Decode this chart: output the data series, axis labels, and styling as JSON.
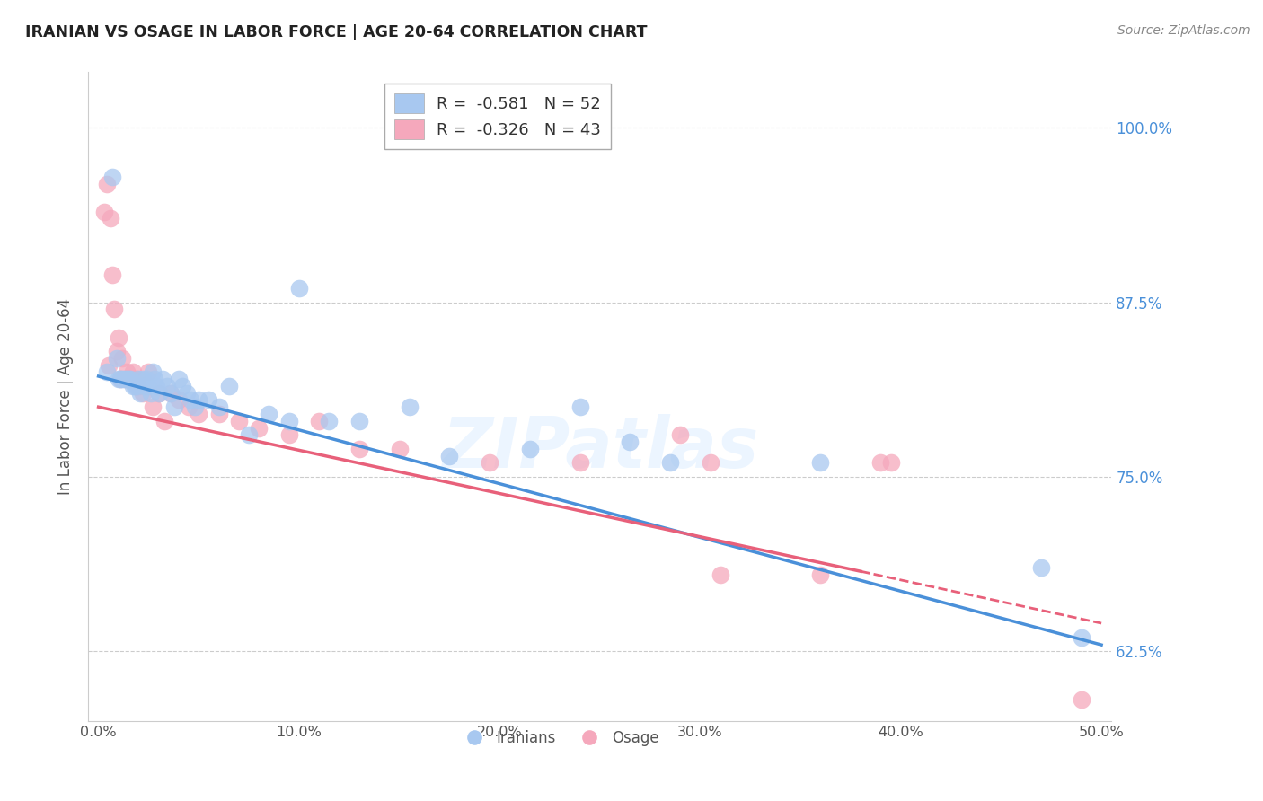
{
  "title": "IRANIAN VS OSAGE IN LABOR FORCE | AGE 20-64 CORRELATION CHART",
  "source": "Source: ZipAtlas.com",
  "ylabel": "In Labor Force | Age 20-64",
  "x_tick_labels": [
    "0.0%",
    "10.0%",
    "20.0%",
    "30.0%",
    "40.0%",
    "50.0%"
  ],
  "x_tick_values": [
    0.0,
    0.1,
    0.2,
    0.3,
    0.4,
    0.5
  ],
  "y_tick_labels": [
    "62.5%",
    "75.0%",
    "87.5%",
    "100.0%"
  ],
  "y_tick_values": [
    0.625,
    0.75,
    0.875,
    1.0
  ],
  "xlim": [
    -0.005,
    0.505
  ],
  "ylim": [
    0.575,
    1.04
  ],
  "watermark": "ZIPatlas",
  "blue_color": "#A8C8F0",
  "pink_color": "#F5A8BC",
  "blue_line_color": "#4A90D9",
  "pink_line_color": "#E8607A",
  "blue_intercept": 0.822,
  "blue_slope": -0.385,
  "pink_intercept": 0.8,
  "pink_slope": -0.31,
  "iranians_x": [
    0.004,
    0.007,
    0.009,
    0.01,
    0.011,
    0.012,
    0.013,
    0.014,
    0.015,
    0.016,
    0.017,
    0.018,
    0.019,
    0.02,
    0.021,
    0.022,
    0.023,
    0.024,
    0.025,
    0.026,
    0.027,
    0.028,
    0.029,
    0.03,
    0.032,
    0.034,
    0.036,
    0.038,
    0.04,
    0.042,
    0.044,
    0.046,
    0.048,
    0.05,
    0.055,
    0.06,
    0.065,
    0.075,
    0.085,
    0.095,
    0.1,
    0.115,
    0.13,
    0.155,
    0.175,
    0.215,
    0.24,
    0.265,
    0.285,
    0.36,
    0.47,
    0.49
  ],
  "iranians_y": [
    0.825,
    0.965,
    0.835,
    0.82,
    0.82,
    0.82,
    0.82,
    0.82,
    0.82,
    0.82,
    0.815,
    0.815,
    0.815,
    0.82,
    0.81,
    0.82,
    0.815,
    0.82,
    0.815,
    0.81,
    0.825,
    0.82,
    0.815,
    0.81,
    0.82,
    0.815,
    0.81,
    0.8,
    0.82,
    0.815,
    0.81,
    0.805,
    0.8,
    0.805,
    0.805,
    0.8,
    0.815,
    0.78,
    0.795,
    0.79,
    0.885,
    0.79,
    0.79,
    0.8,
    0.765,
    0.77,
    0.8,
    0.775,
    0.76,
    0.76,
    0.685,
    0.635
  ],
  "osage_x": [
    0.003,
    0.004,
    0.005,
    0.006,
    0.007,
    0.008,
    0.009,
    0.01,
    0.011,
    0.012,
    0.013,
    0.014,
    0.015,
    0.016,
    0.017,
    0.018,
    0.019,
    0.02,
    0.022,
    0.025,
    0.027,
    0.03,
    0.033,
    0.036,
    0.04,
    0.045,
    0.05,
    0.06,
    0.07,
    0.08,
    0.095,
    0.11,
    0.13,
    0.15,
    0.195,
    0.24,
    0.29,
    0.305,
    0.31,
    0.36,
    0.39,
    0.395,
    0.49
  ],
  "osage_y": [
    0.94,
    0.96,
    0.83,
    0.935,
    0.895,
    0.87,
    0.84,
    0.85,
    0.82,
    0.835,
    0.82,
    0.825,
    0.82,
    0.82,
    0.825,
    0.82,
    0.82,
    0.815,
    0.81,
    0.825,
    0.8,
    0.81,
    0.79,
    0.81,
    0.805,
    0.8,
    0.795,
    0.795,
    0.79,
    0.785,
    0.78,
    0.79,
    0.77,
    0.77,
    0.76,
    0.76,
    0.78,
    0.76,
    0.68,
    0.68,
    0.76,
    0.76,
    0.59
  ]
}
